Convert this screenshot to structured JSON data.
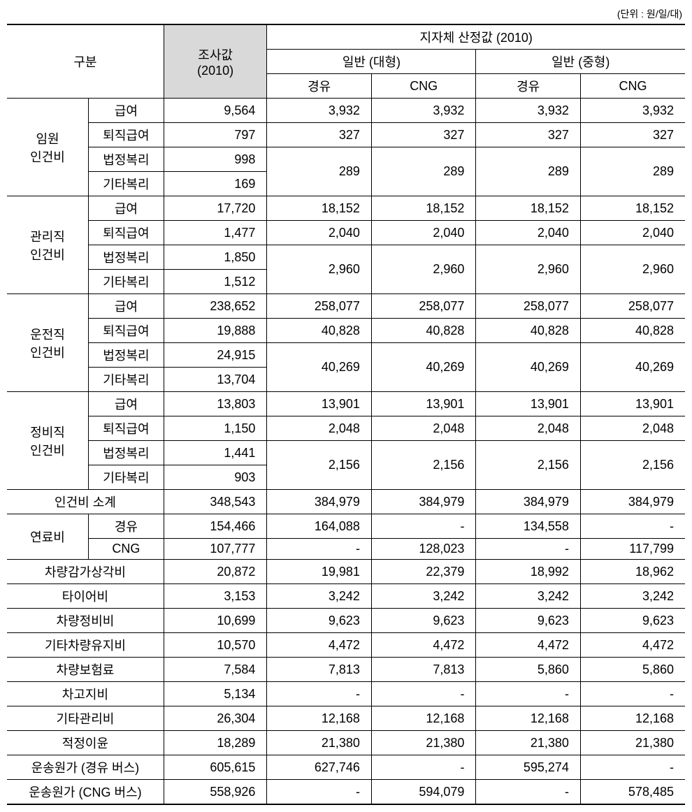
{
  "unit_label": "(단위 : 원/일/대)",
  "headers": {
    "category": "구분",
    "survey": "조사값",
    "survey_year": "(2010)",
    "estimate": "지자체 산정값 (2010)",
    "type_large": "일반 (대형)",
    "type_medium": "일반 (중형)",
    "diesel": "경유",
    "cng": "CNG"
  },
  "groups": {
    "executive": {
      "label1": "임원",
      "label2": "인건비",
      "salary": {
        "label": "급여",
        "survey": "9,564",
        "ld": "3,932",
        "lc": "3,932",
        "md": "3,932",
        "mc": "3,932"
      },
      "retire": {
        "label": "퇴직급여",
        "survey": "797",
        "ld": "327",
        "lc": "327",
        "md": "327",
        "mc": "327"
      },
      "welfare1": {
        "label": "법정복리",
        "survey": "998"
      },
      "welfare2": {
        "label": "기타복리",
        "survey": "169"
      },
      "welfare_merged": {
        "ld": "289",
        "lc": "289",
        "md": "289",
        "mc": "289"
      }
    },
    "admin": {
      "label1": "관리직",
      "label2": "인건비",
      "salary": {
        "label": "급여",
        "survey": "17,720",
        "ld": "18,152",
        "lc": "18,152",
        "md": "18,152",
        "mc": "18,152"
      },
      "retire": {
        "label": "퇴직급여",
        "survey": "1,477",
        "ld": "2,040",
        "lc": "2,040",
        "md": "2,040",
        "mc": "2,040"
      },
      "welfare1": {
        "label": "법정복리",
        "survey": "1,850"
      },
      "welfare2": {
        "label": "기타복리",
        "survey": "1,512"
      },
      "welfare_merged": {
        "ld": "2,960",
        "lc": "2,960",
        "md": "2,960",
        "mc": "2,960"
      }
    },
    "driver": {
      "label1": "운전직",
      "label2": "인건비",
      "salary": {
        "label": "급여",
        "survey": "238,652",
        "ld": "258,077",
        "lc": "258,077",
        "md": "258,077",
        "mc": "258,077"
      },
      "retire": {
        "label": "퇴직급여",
        "survey": "19,888",
        "ld": "40,828",
        "lc": "40,828",
        "md": "40,828",
        "mc": "40,828"
      },
      "welfare1": {
        "label": "법정복리",
        "survey": "24,915"
      },
      "welfare2": {
        "label": "기타복리",
        "survey": "13,704"
      },
      "welfare_merged": {
        "ld": "40,269",
        "lc": "40,269",
        "md": "40,269",
        "mc": "40,269"
      }
    },
    "mechanic": {
      "label1": "정비직",
      "label2": "인건비",
      "salary": {
        "label": "급여",
        "survey": "13,803",
        "ld": "13,901",
        "lc": "13,901",
        "md": "13,901",
        "mc": "13,901"
      },
      "retire": {
        "label": "퇴직급여",
        "survey": "1,150",
        "ld": "2,048",
        "lc": "2,048",
        "md": "2,048",
        "mc": "2,048"
      },
      "welfare1": {
        "label": "법정복리",
        "survey": "1,441"
      },
      "welfare2": {
        "label": "기타복리",
        "survey": "903"
      },
      "welfare_merged": {
        "ld": "2,156",
        "lc": "2,156",
        "md": "2,156",
        "mc": "2,156"
      }
    }
  },
  "subtotal": {
    "label": "인건비 소계",
    "survey": "348,543",
    "ld": "384,979",
    "lc": "384,979",
    "md": "384,979",
    "mc": "384,979"
  },
  "fuel": {
    "label": "연료비",
    "diesel": {
      "label": "경유",
      "survey": "154,466",
      "ld": "164,088",
      "lc": "-",
      "md": "134,558",
      "mc": "-"
    },
    "cng": {
      "label": "CNG",
      "survey": "107,777",
      "ld": "-",
      "lc": "128,023",
      "md": "-",
      "mc": "117,799"
    }
  },
  "single_rows": {
    "depreciation": {
      "label": "차량감가상각비",
      "survey": "20,872",
      "ld": "19,981",
      "lc": "22,379",
      "md": "18,992",
      "mc": "18,962"
    },
    "tire": {
      "label": "타이어비",
      "survey": "3,153",
      "ld": "3,242",
      "lc": "3,242",
      "md": "3,242",
      "mc": "3,242"
    },
    "maintenance": {
      "label": "차량정비비",
      "survey": "10,699",
      "ld": "9,623",
      "lc": "9,623",
      "md": "9,623",
      "mc": "9,623"
    },
    "other_vehicle": {
      "label": "기타차량유지비",
      "survey": "10,570",
      "ld": "4,472",
      "lc": "4,472",
      "md": "4,472",
      "mc": "4,472"
    },
    "insurance": {
      "label": "차량보험료",
      "survey": "7,584",
      "ld": "7,813",
      "lc": "7,813",
      "md": "5,860",
      "mc": "5,860"
    },
    "garage": {
      "label": "차고지비",
      "survey": "5,134",
      "ld": "-",
      "lc": "-",
      "md": "-",
      "mc": "-"
    },
    "other_mgmt": {
      "label": "기타관리비",
      "survey": "26,304",
      "ld": "12,168",
      "lc": "12,168",
      "md": "12,168",
      "mc": "12,168"
    },
    "profit": {
      "label": "적정이윤",
      "survey": "18,289",
      "ld": "21,380",
      "lc": "21,380",
      "md": "21,380",
      "mc": "21,380"
    },
    "total_diesel": {
      "label": "운송원가 (경유 버스)",
      "survey": "605,615",
      "ld": "627,746",
      "lc": "-",
      "md": "595,274",
      "mc": "-"
    },
    "total_cng": {
      "label": "운송원가 (CNG 버스)",
      "survey": "558,926",
      "ld": "-",
      "lc": "594,079",
      "md": "-",
      "mc": "578,485"
    }
  }
}
